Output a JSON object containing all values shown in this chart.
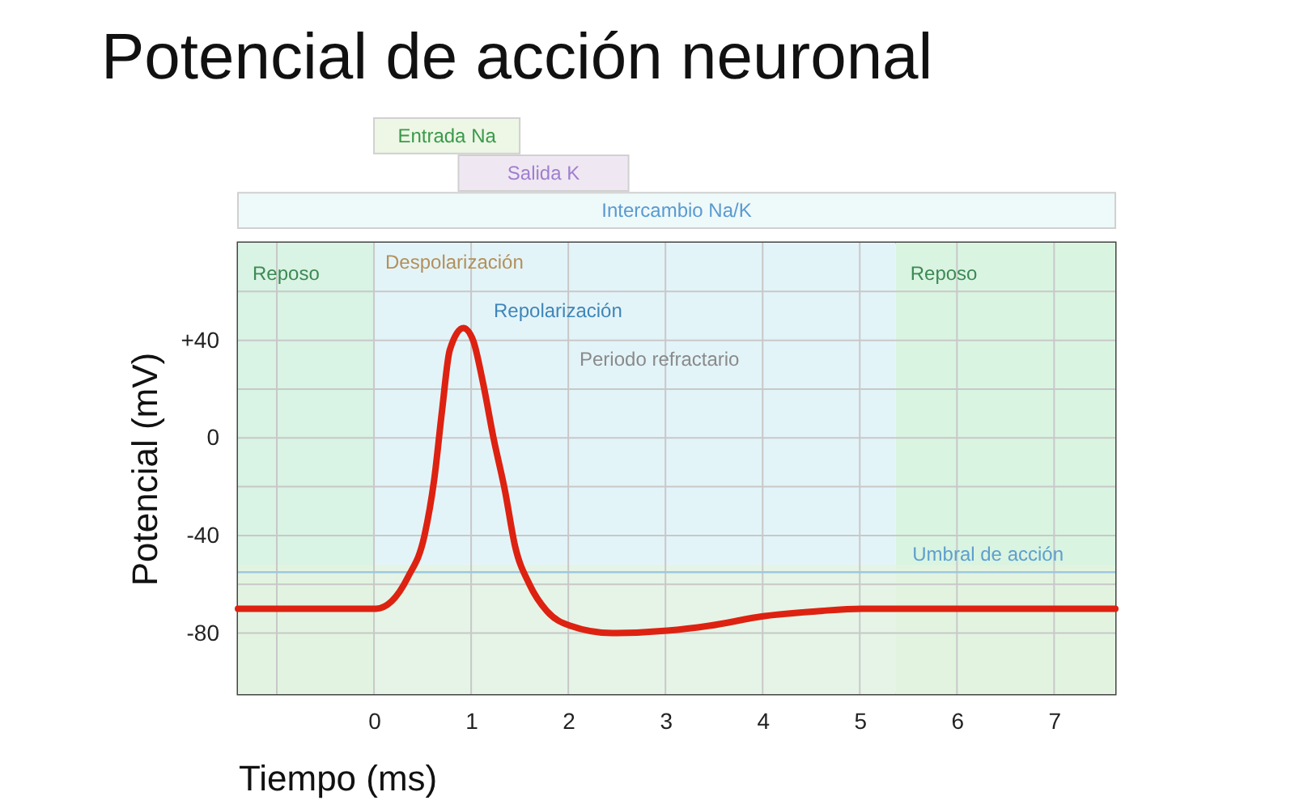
{
  "chart_data": [
    {
      "type": "bar",
      "title": "Potencial de acción neuronal",
      "orientation": "horizontal",
      "tick_labels": false,
      "categories": [
        "Entrada Na",
        "Salida K",
        "Intercambio Na/K"
      ],
      "base": [
        0,
        0.87,
        -1.4
      ],
      "values": [
        1.5,
        1.75,
        9.03
      ],
      "colors": [
        "#eef7e6",
        "#efe8f2",
        "#eef9fa"
      ],
      "xlim": [
        -1.4,
        7.63
      ]
    },
    {
      "type": "line",
      "xlabel": "Tiempo (ms)",
      "ylabel": "Potencial (mV)",
      "xlim": [
        -1.4,
        7.63
      ],
      "ylim": [
        -105,
        80
      ],
      "xticks": [
        {
          "value": -1,
          "label": null
        },
        0,
        1,
        2,
        3,
        4,
        5,
        6,
        7
      ],
      "yticks": [
        {
          "value": 60,
          "label": null
        },
        {
          "value": 40,
          "label": "+40"
        },
        {
          "value": 20,
          "label": null
        },
        0,
        {
          "value": -20,
          "label": null
        },
        -40,
        {
          "value": -60,
          "label": null
        },
        -80
      ],
      "grid": true,
      "marker": "none",
      "line_style": "solid",
      "series": [
        {
          "color": "#dd2211",
          "x": [
            -1.4,
            0.02,
            0.18,
            0.35,
            0.52,
            0.62,
            0.7,
            0.78,
            0.92,
            1.02,
            1.12,
            1.23,
            1.35,
            1.45,
            1.6,
            1.78,
            2.02,
            2.45,
            3.02,
            3.45,
            4.02,
            4.57,
            5.02,
            7.63
          ],
          "values": [
            -70,
            -70,
            -67,
            -57,
            -40,
            -17,
            11,
            36,
            45,
            40,
            23,
            0,
            -22,
            -44,
            -60,
            -71,
            -77,
            -80,
            -79,
            -77,
            -73,
            -71,
            -70,
            -70
          ]
        }
      ],
      "bands": [
        {
          "axis": "x",
          "from": -1.4,
          "to": 0,
          "label": "Reposo",
          "color": "#d9f3e4"
        },
        {
          "axis": "x",
          "from": 0,
          "to": 5.37,
          "color": "#e3f4f9"
        },
        {
          "axis": "x",
          "from": 5.37,
          "to": 7.63,
          "label": "Reposo",
          "color": "#daf4e2"
        },
        {
          "axis": "y",
          "from": -105,
          "to": -52,
          "color": "#e6f4e0"
        }
      ],
      "ref_lines": [
        {
          "axis": "y",
          "value": -55,
          "label": "Umbral de acción",
          "color": "#9cc8e2"
        }
      ],
      "annotations": [
        "Despolarización",
        "Repolarización",
        "Periodo refractario"
      ]
    }
  ]
}
